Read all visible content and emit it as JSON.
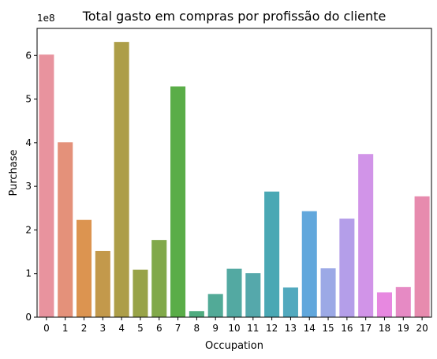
{
  "chart_data": {
    "type": "bar",
    "title": "Total gasto em compras por profissão do cliente",
    "xlabel": "Occupation",
    "ylabel": "Purchase",
    "offset_text": "1e8",
    "categories": [
      "0",
      "1",
      "2",
      "3",
      "4",
      "5",
      "6",
      "7",
      "8",
      "9",
      "10",
      "11",
      "12",
      "13",
      "14",
      "15",
      "16",
      "17",
      "18",
      "19",
      "20"
    ],
    "values": [
      6.02,
      4.01,
      2.23,
      1.52,
      6.31,
      1.09,
      1.77,
      5.29,
      0.14,
      0.53,
      1.11,
      1.01,
      2.88,
      0.68,
      2.43,
      1.12,
      2.26,
      3.74,
      0.57,
      0.69,
      2.77
    ],
    "value_scale": "1e8",
    "ylim": [
      0,
      6.62
    ],
    "yticks": [
      0,
      1,
      2,
      3,
      4,
      5,
      6
    ],
    "grid": false,
    "legend": "none",
    "colors": [
      "#e8939e",
      "#e4917a",
      "#dc9450",
      "#c3994b",
      "#ad9e48",
      "#98a348",
      "#81a94a",
      "#5aad48",
      "#4fab7f",
      "#52aa97",
      "#53a9a2",
      "#55a8ab",
      "#4aa8b4",
      "#52a9be",
      "#61a7dc",
      "#9ca9e6",
      "#b49ee9",
      "#d194e8",
      "#e788e0",
      "#e68ac4",
      "#e78bae"
    ]
  }
}
